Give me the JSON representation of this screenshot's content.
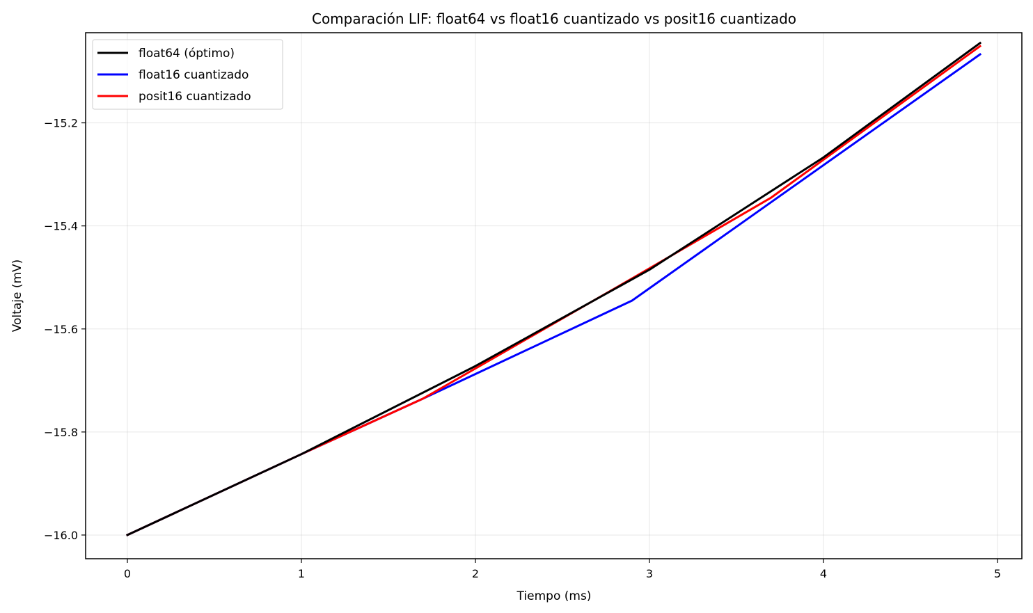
{
  "chart_data": {
    "type": "line",
    "title": "Comparación LIF: float64 vs float16 cuantizado vs posit16 cuantizado",
    "xlabel": "Tiempo (ms)",
    "ylabel": "Voltaje (mV)",
    "xlim": [
      -0.24,
      5.14
    ],
    "ylim": [
      -16.046,
      -15.025
    ],
    "xticks": [
      0,
      1,
      2,
      3,
      4,
      5
    ],
    "xtick_labels": [
      "0",
      "1",
      "2",
      "3",
      "4",
      "5"
    ],
    "yticks": [
      -16.0,
      -15.8,
      -15.6,
      -15.4,
      -15.2
    ],
    "ytick_labels": [
      "−16.0",
      "−15.8",
      "−15.6",
      "−15.4",
      "−15.2"
    ],
    "grid": true,
    "legend_position": "top-left",
    "series": [
      {
        "name": "float64 (óptimo)",
        "color": "#000000",
        "x": [
          0,
          1,
          2,
          3,
          4,
          4.9
        ],
        "y": [
          -16.0,
          -15.843,
          -15.672,
          -15.485,
          -15.267,
          -15.045
        ]
      },
      {
        "name": "float16 cuantizado",
        "color": "#0000ff",
        "x": [
          0,
          1,
          1.7,
          2.9,
          4.9
        ],
        "y": [
          -16.0,
          -15.843,
          -15.735,
          -15.545,
          -15.067
        ]
      },
      {
        "name": "posit16 cuantizado",
        "color": "#ff0000",
        "x": [
          0,
          1,
          1.7,
          2.9,
          3.7,
          4.9
        ],
        "y": [
          -16.0,
          -15.843,
          -15.735,
          -15.502,
          -15.345,
          -15.051
        ]
      }
    ]
  }
}
